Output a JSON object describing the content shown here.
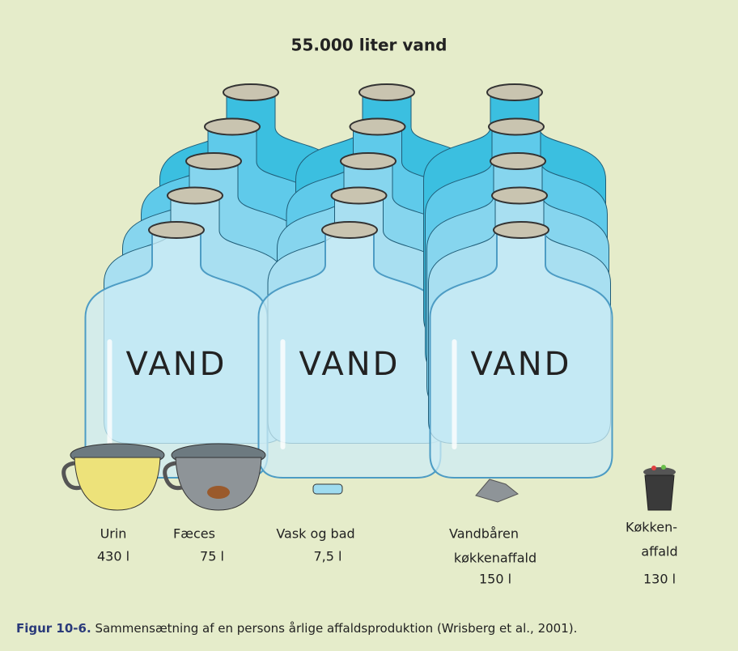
{
  "title": "55.000 liter vand",
  "bottles": [
    {
      "label": "VAND"
    },
    {
      "label": "VAND"
    },
    {
      "label": "VAND"
    }
  ],
  "items": [
    {
      "name": [
        "Urin"
      ],
      "amount": "430 l"
    },
    {
      "name": [
        "Fæces"
      ],
      "amount": "75 l"
    },
    {
      "name": [
        "Vask og bad"
      ],
      "amount": "7,5 l"
    },
    {
      "name": [
        "Vandbåren",
        "køkkenaffald"
      ],
      "amount": "150 l"
    },
    {
      "name": [
        "Køkken-",
        "affald"
      ],
      "amount": "130 l"
    }
  ],
  "caption": {
    "label": "Figur 10-6.",
    "text": "Sammensætning af en persons årlige affaldsproduktion (Wrisberg et al., 2001)."
  }
}
